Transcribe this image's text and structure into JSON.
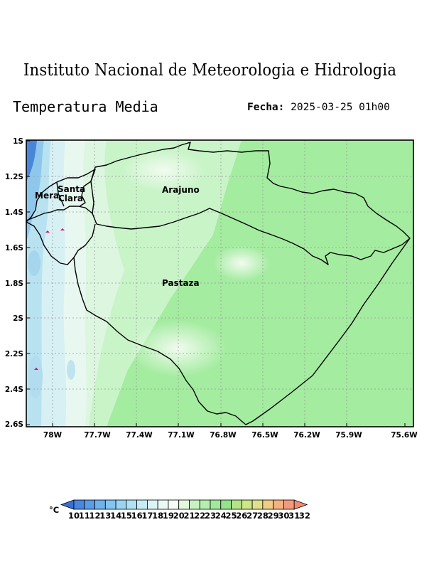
{
  "header": {
    "institute": "Instituto Nacional de Meteorologia e Hidrologia",
    "product": "Temperatura Media",
    "date_label": "Fecha:",
    "date_value": "2025-03-25 01h00"
  },
  "map": {
    "lat_labels": [
      "1S",
      "1.2S",
      "1.4S",
      "1.6S",
      "1.8S",
      "2S",
      "2.2S",
      "2.4S",
      "2.6S"
    ],
    "lon_labels": [
      "78W",
      "77.7W",
      "77.4W",
      "77.1W",
      "76.8W",
      "76.5W",
      "76.2W",
      "75.9W",
      "75.6W"
    ],
    "regions": [
      "Arajuno",
      "Pastaza",
      "Mera",
      "Santa",
      "Clara"
    ],
    "colors": {
      "cold_deep": "#4a86d8",
      "cold": "#8fc7ec",
      "cool": "#c8ecf4",
      "mild": "#e8f8f0",
      "light_green": "#c8f4c8",
      "green": "#a4eca0",
      "border": "#000000",
      "grid": "#9a9a9a",
      "marker": "#e0007a"
    }
  },
  "colorbar": {
    "unit": "°C",
    "labels": [
      "10",
      "11",
      "12",
      "13",
      "14",
      "15",
      "16",
      "17",
      "18",
      "19",
      "20",
      "21",
      "22",
      "23",
      "24",
      "25",
      "26",
      "27",
      "28",
      "29",
      "30",
      "31",
      "32"
    ],
    "colors": [
      "#3a6fd8",
      "#4a86e0",
      "#5c9ce6",
      "#6fb2ec",
      "#84c4f0",
      "#9ad4f4",
      "#b0e2f6",
      "#c8ecf6",
      "#dcf4f6",
      "#ecfaf6",
      "#f6fcf6",
      "#e4f8e0",
      "#c8f2c4",
      "#b4eeb0",
      "#a0e89c",
      "#94e48c",
      "#b4e488",
      "#cce688",
      "#e0e08a",
      "#f0cc86",
      "#f4b282",
      "#f49a7c",
      "#f28a72"
    ]
  }
}
